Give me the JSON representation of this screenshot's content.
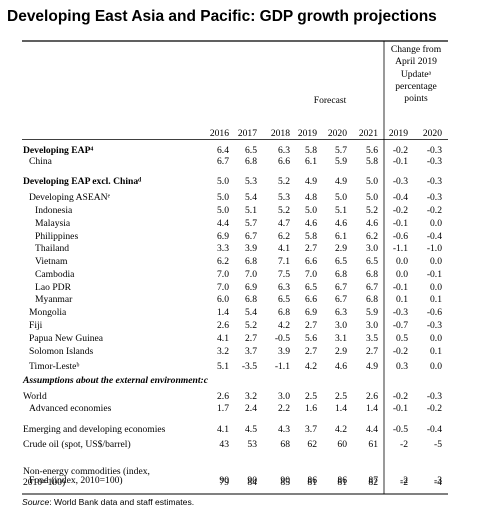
{
  "title": "Developing East Asia and Pacific: GDP growth projections",
  "header": {
    "forecast_label": "Forecast",
    "change_label": [
      "Change from",
      "April 2019",
      "Updateᵃ",
      "percentage",
      "points"
    ],
    "years": [
      "2016",
      "2017",
      "2018",
      "2019",
      "2020",
      "2021",
      "2019",
      "2020"
    ]
  },
  "rows": [
    {
      "label": "Developing EAP⁴",
      "indent": 0,
      "style": "bold",
      "values": [
        "6.4",
        "6.5",
        "6.3",
        "5.8",
        "5.7",
        "5.6",
        "-0.2",
        "-0.3"
      ]
    },
    {
      "label": "China",
      "indent": 1,
      "style": "",
      "values": [
        "6.7",
        "6.8",
        "6.6",
        "6.1",
        "5.9",
        "5.8",
        "-0.1",
        "-0.3"
      ]
    },
    {
      "label": "Developing EAP excl. Chinaᵈ",
      "indent": 0,
      "style": "bold",
      "values": [
        "5.0",
        "5.3",
        "5.2",
        "4.9",
        "4.9",
        "5.0",
        "-0.3",
        "-0.3"
      ]
    },
    {
      "label": "Developing ASEANᵉ",
      "indent": 1,
      "style": "",
      "values": [
        "5.0",
        "5.4",
        "5.3",
        "4.8",
        "5.0",
        "5.0",
        "-0.4",
        "-0.3"
      ]
    },
    {
      "label": "Indonesia",
      "indent": 2,
      "style": "",
      "values": [
        "5.0",
        "5.1",
        "5.2",
        "5.0",
        "5.1",
        "5.2",
        "-0.2",
        "-0.2"
      ]
    },
    {
      "label": "Malaysia",
      "indent": 2,
      "style": "",
      "values": [
        "4.4",
        "5.7",
        "4.7",
        "4.6",
        "4.6",
        "4.6",
        "-0.1",
        "0.0"
      ]
    },
    {
      "label": "Philippines",
      "indent": 2,
      "style": "",
      "values": [
        "6.9",
        "6.7",
        "6.2",
        "5.8",
        "6.1",
        "6.2",
        "-0.6",
        "-0.4"
      ]
    },
    {
      "label": "Thailand",
      "indent": 2,
      "style": "",
      "values": [
        "3.3",
        "3.9",
        "4.1",
        "2.7",
        "2.9",
        "3.0",
        "-1.1",
        "-1.0"
      ]
    },
    {
      "label": "Vietnam",
      "indent": 2,
      "style": "",
      "values": [
        "6.2",
        "6.8",
        "7.1",
        "6.6",
        "6.5",
        "6.5",
        "0.0",
        "0.0"
      ]
    },
    {
      "label": "Cambodia",
      "indent": 2,
      "style": "",
      "values": [
        "7.0",
        "7.0",
        "7.5",
        "7.0",
        "6.8",
        "6.8",
        "0.0",
        "-0.1"
      ]
    },
    {
      "label": "Lao PDR",
      "indent": 2,
      "style": "",
      "values": [
        "7.0",
        "6.9",
        "6.3",
        "6.5",
        "6.7",
        "6.7",
        "-0.1",
        "0.0"
      ]
    },
    {
      "label": "Myanmar",
      "indent": 2,
      "style": "",
      "values": [
        "6.0",
        "6.8",
        "6.5",
        "6.6",
        "6.7",
        "6.8",
        "0.1",
        "0.1"
      ]
    },
    {
      "label": "Mongolia",
      "indent": 1,
      "style": "",
      "values": [
        "1.4",
        "5.4",
        "6.8",
        "6.9",
        "6.3",
        "5.9",
        "-0.3",
        "-0.6"
      ]
    },
    {
      "label": "Fiji",
      "indent": 1,
      "style": "",
      "values": [
        "2.6",
        "5.2",
        "4.2",
        "2.7",
        "3.0",
        "3.0",
        "-0.7",
        "-0.3"
      ]
    },
    {
      "label": "Papua New Guinea",
      "indent": 1,
      "style": "",
      "values": [
        "4.1",
        "2.7",
        "-0.5",
        "5.6",
        "3.1",
        "3.5",
        "0.5",
        "0.0"
      ]
    },
    {
      "label": "Solomon Islands",
      "indent": 1,
      "style": "",
      "values": [
        "3.2",
        "3.7",
        "3.9",
        "2.7",
        "2.9",
        "2.7",
        "-0.2",
        "0.1"
      ]
    },
    {
      "label": "Timor-Lesteᵇ",
      "indent": 1,
      "style": "",
      "values": [
        "5.1",
        "-3.5",
        "-1.1",
        "4.2",
        "4.6",
        "4.9",
        "0.3",
        "0.0"
      ]
    },
    {
      "label": "Assumptions about the external environment:c",
      "indent": 0,
      "style": "bolditalic",
      "values": []
    },
    {
      "label": "World",
      "indent": 0,
      "style": "",
      "values": [
        "2.6",
        "3.2",
        "3.0",
        "2.5",
        "2.5",
        "2.6",
        "-0.2",
        "-0.3"
      ]
    },
    {
      "label": "Advanced economies",
      "indent": 1,
      "style": "",
      "values": [
        "1.7",
        "2.4",
        "2.2",
        "1.6",
        "1.4",
        "1.4",
        "-0.1",
        "-0.2"
      ]
    },
    {
      "label": "Emerging and developing economies",
      "indent": 0,
      "style": "",
      "values": [
        "4.1",
        "4.5",
        "4.3",
        "3.7",
        "4.2",
        "4.4",
        "-0.5",
        "-0.4"
      ]
    },
    {
      "label": "Crude oil (spot, US$/barrel)",
      "indent": 0,
      "style": "",
      "values": [
        "43",
        "53",
        "68",
        "62",
        "60",
        "61",
        "-2",
        "-5"
      ]
    },
    {
      "label": [
        "Non-energy commodities (index,",
        "2010=100)"
      ],
      "indent": 0,
      "style": "",
      "values": [
        "79",
        "84",
        "85",
        "81",
        "81",
        "82",
        "-2",
        "-4"
      ]
    },
    {
      "label": "Food (index, 2010=100)",
      "indent": 1,
      "style": "",
      "values": [
        "90",
        "90",
        "90",
        "86",
        "86",
        "87",
        "-2",
        "-3"
      ]
    }
  ],
  "source": {
    "prefix": "Source",
    "text": ": World Bank data and staff estimates."
  }
}
